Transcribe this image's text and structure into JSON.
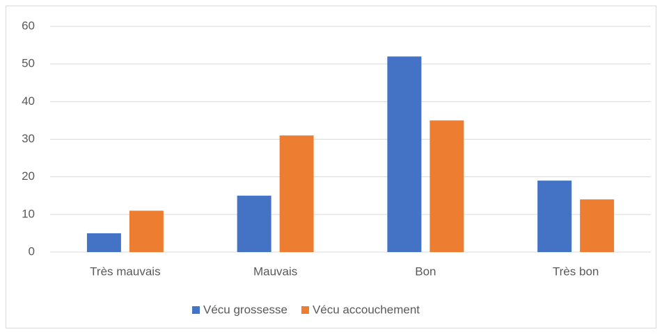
{
  "chart_data": {
    "type": "bar",
    "categories": [
      "Très mauvais",
      "Mauvais",
      "Bon",
      "Très bon"
    ],
    "series": [
      {
        "name": "Vécu grossesse",
        "color": "#4472c4",
        "values": [
          5,
          15,
          52,
          19
        ]
      },
      {
        "name": "Vécu accouchement",
        "color": "#ed7d31",
        "values": [
          11,
          31,
          35,
          14
        ]
      }
    ],
    "ylim": [
      0,
      60
    ],
    "yticks": [
      0,
      10,
      20,
      30,
      40,
      50,
      60
    ],
    "grid": true,
    "legend": "bottom"
  }
}
